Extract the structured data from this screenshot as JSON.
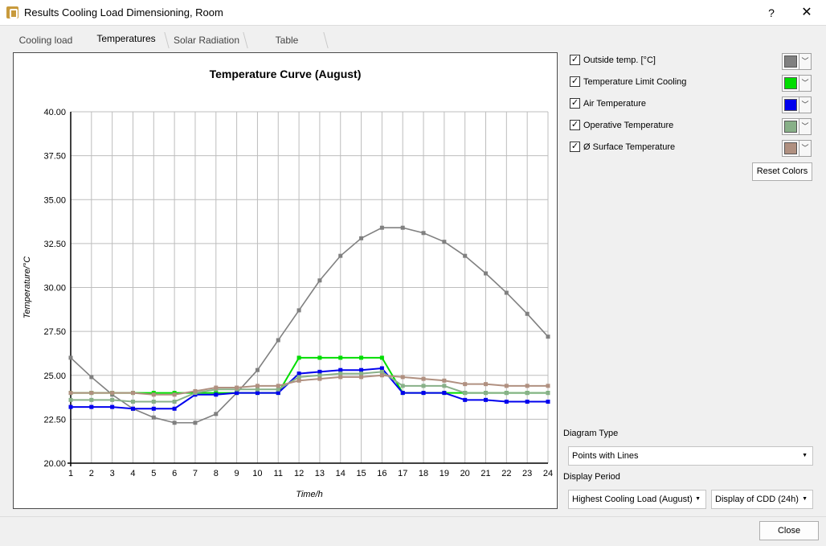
{
  "window": {
    "title": "Results Cooling Load Dimensioning, Room",
    "help_glyph": "?",
    "close_glyph": "✕"
  },
  "tabs": [
    {
      "label": "Cooling load",
      "active": false
    },
    {
      "label": "Temperatures",
      "active": true
    },
    {
      "label": "Solar Radiation",
      "active": false
    },
    {
      "label": "Table",
      "active": false
    }
  ],
  "legend": [
    {
      "label": "Outside temp. [°C]",
      "checked": true,
      "color": "#808080"
    },
    {
      "label": "Temperature Limit Cooling",
      "checked": true,
      "color": "#00dd00"
    },
    {
      "label": "Air Temperature",
      "checked": true,
      "color": "#0000ee"
    },
    {
      "label": "Operative Temperature",
      "checked": true,
      "color": "#88b088"
    },
    {
      "label": "Ø Surface Temperature",
      "checked": true,
      "color": "#b09080"
    }
  ],
  "reset_colors_label": "Reset Colors",
  "diagram_type": {
    "label": "Diagram Type",
    "value": "Points with Lines"
  },
  "display_period": {
    "label": "Display Period",
    "value": "Highest Cooling Load (August)",
    "value2": "Display of CDD (24h)"
  },
  "close_label": "Close",
  "chart_data": {
    "type": "line",
    "title": "Temperature Curve (August)",
    "xlabel": "Time/h",
    "ylabel": "Temperature/°C",
    "x": [
      1,
      2,
      3,
      4,
      5,
      6,
      7,
      8,
      9,
      10,
      11,
      12,
      13,
      14,
      15,
      16,
      17,
      18,
      19,
      20,
      21,
      22,
      23,
      24
    ],
    "xlim": [
      1,
      24
    ],
    "ylim": [
      20,
      40
    ],
    "yticks": [
      "20.00",
      "22.50",
      "25.00",
      "27.50",
      "30.00",
      "32.50",
      "35.00",
      "37.50",
      "40.00"
    ],
    "grid": true,
    "series": [
      {
        "name": "Outside temp. [°C]",
        "color": "#808080",
        "values": [
          26.0,
          24.9,
          23.9,
          23.1,
          22.6,
          22.3,
          22.3,
          22.8,
          24.0,
          25.3,
          27.0,
          28.7,
          30.4,
          31.8,
          32.8,
          33.4,
          33.4,
          33.1,
          32.6,
          31.8,
          30.8,
          29.7,
          28.5,
          27.2
        ]
      },
      {
        "name": "Temperature Limit Cooling",
        "color": "#00dd00",
        "values": [
          24.0,
          24.0,
          24.0,
          24.0,
          24.0,
          24.0,
          24.0,
          24.0,
          24.0,
          24.0,
          24.0,
          26.0,
          26.0,
          26.0,
          26.0,
          26.0,
          24.0,
          24.0,
          24.0,
          24.0,
          24.0,
          24.0,
          24.0,
          24.0
        ]
      },
      {
        "name": "Air Temperature",
        "color": "#0000ee",
        "values": [
          23.2,
          23.2,
          23.2,
          23.1,
          23.1,
          23.1,
          23.9,
          23.9,
          24.0,
          24.0,
          24.0,
          25.1,
          25.2,
          25.3,
          25.3,
          25.4,
          24.0,
          24.0,
          24.0,
          23.6,
          23.6,
          23.5,
          23.5,
          23.5
        ]
      },
      {
        "name": "Operative Temperature",
        "color": "#88b088",
        "values": [
          23.6,
          23.6,
          23.6,
          23.5,
          23.5,
          23.5,
          24.0,
          24.2,
          24.2,
          24.2,
          24.2,
          24.9,
          25.0,
          25.1,
          25.1,
          25.2,
          24.4,
          24.4,
          24.4,
          24.0,
          24.0,
          24.0,
          24.0,
          24.0
        ]
      },
      {
        "name": "Ø Surface Temperature",
        "color": "#b09080",
        "values": [
          24.0,
          24.0,
          24.0,
          24.0,
          23.9,
          23.9,
          24.1,
          24.3,
          24.3,
          24.4,
          24.4,
          24.7,
          24.8,
          24.9,
          24.9,
          25.0,
          24.9,
          24.8,
          24.7,
          24.5,
          24.5,
          24.4,
          24.4,
          24.4
        ]
      }
    ]
  }
}
